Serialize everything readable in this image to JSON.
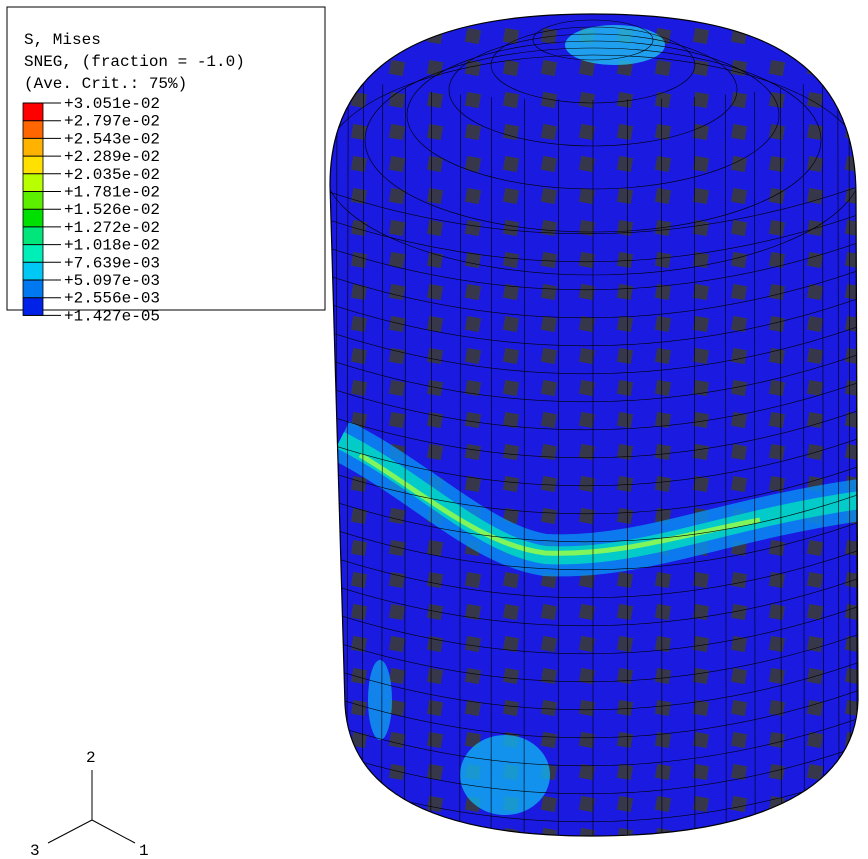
{
  "legend": {
    "title_lines": [
      "S, Mises",
      "SNEG, (fraction = -1.0)",
      "(Ave. Crit.: 75%)"
    ],
    "labels": [
      "+3.051e-02",
      "+2.797e-02",
      "+2.543e-02",
      "+2.289e-02",
      "+2.035e-02",
      "+1.781e-02",
      "+1.526e-02",
      "+1.272e-02",
      "+1.018e-02",
      "+7.639e-03",
      "+5.097e-03",
      "+2.556e-03",
      "+1.427e-05"
    ],
    "colors": [
      "#ff0000",
      "#ff6600",
      "#ffb300",
      "#ffe000",
      "#b8ff00",
      "#5cf000",
      "#00e000",
      "#00e67a",
      "#00eeb8",
      "#00c8f5",
      "#0078f0",
      "#0022e8"
    ]
  },
  "triad": {
    "axes": [
      "1",
      "2",
      "3"
    ]
  }
}
